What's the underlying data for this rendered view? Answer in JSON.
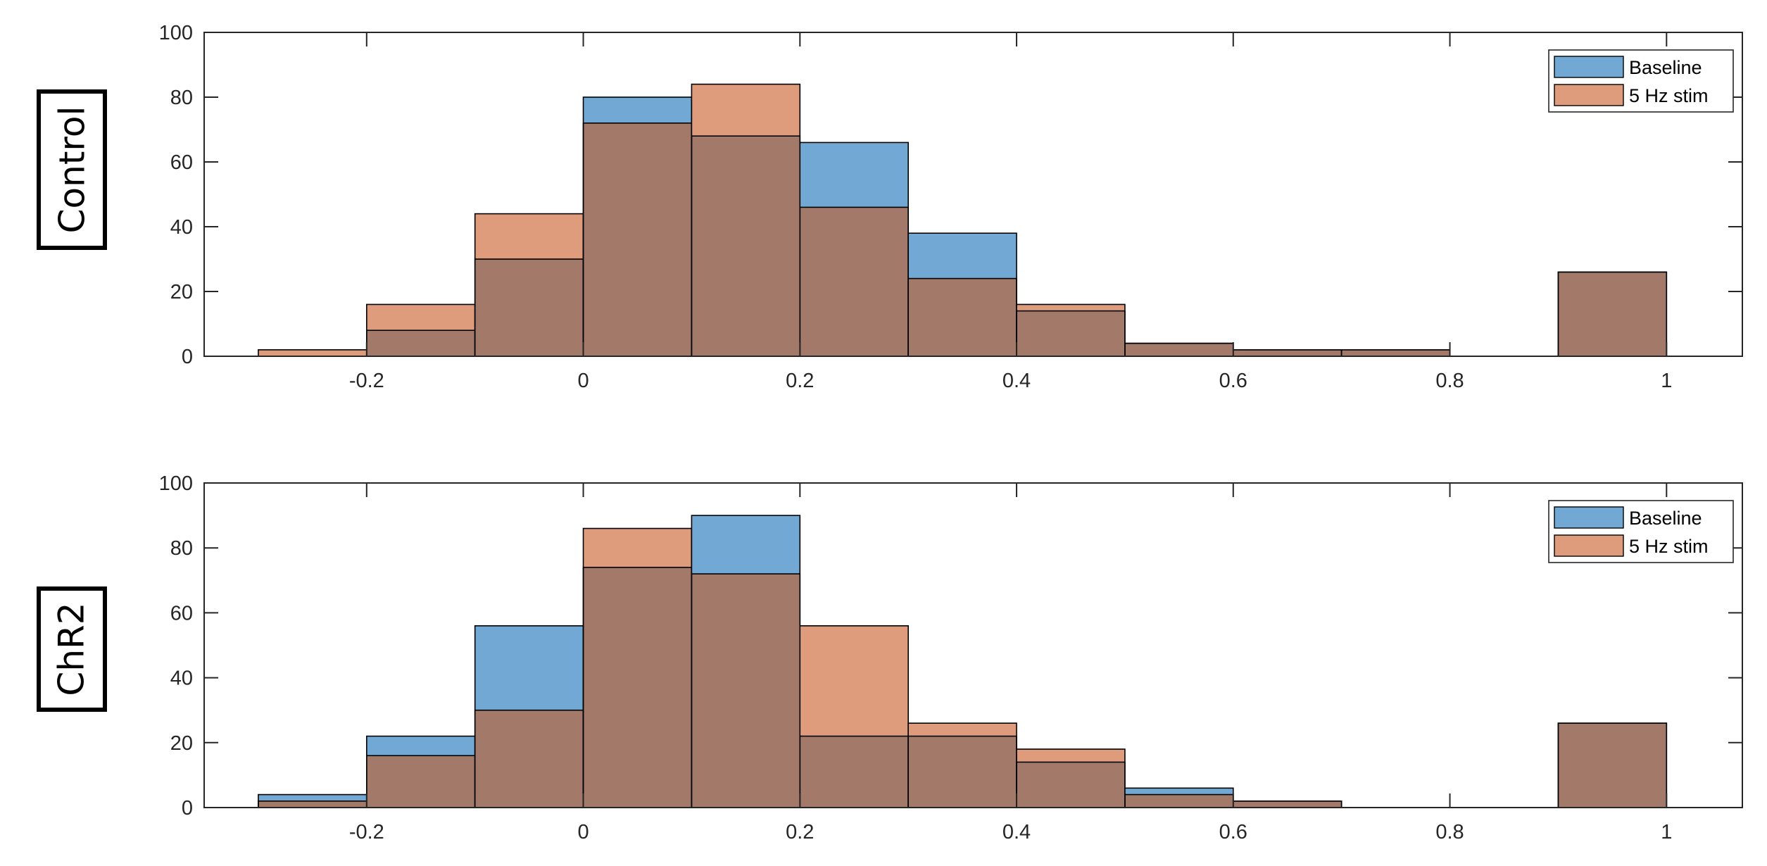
{
  "chart_data": [
    {
      "type": "bar",
      "title": "",
      "row_label": "Control",
      "xlabel": "",
      "ylabel": "",
      "bin_edges": [
        -0.3,
        -0.2,
        -0.1,
        0,
        0.1,
        0.2,
        0.3,
        0.4,
        0.5,
        0.6,
        0.7,
        0.8,
        0.9,
        1.0
      ],
      "series": [
        {
          "name": "Baseline",
          "color": "#72A9D4",
          "values": [
            0,
            8,
            30,
            80,
            68,
            66,
            38,
            14,
            4,
            2,
            2,
            0,
            26
          ]
        },
        {
          "name": "5 Hz stim",
          "color": "#DE9C7C",
          "values": [
            2,
            16,
            44,
            72,
            84,
            46,
            24,
            16,
            4,
            2,
            2,
            0,
            26
          ]
        }
      ],
      "overlap_color": "#A37A69",
      "xlim": [
        -0.35,
        1.07
      ],
      "ylim": [
        0,
        100
      ],
      "xticks": [
        -0.2,
        0,
        0.2,
        0.4,
        0.6,
        0.8,
        1
      ],
      "xtick_labels": [
        "-0.2",
        "0",
        "0.2",
        "0.4",
        "0.6",
        "0.8",
        "1"
      ],
      "yticks": [
        0,
        20,
        40,
        60,
        80,
        100
      ],
      "ytick_labels": [
        "0",
        "20",
        "40",
        "60",
        "80",
        "100"
      ],
      "legend": {
        "position": "top-right",
        "entries": [
          "Baseline",
          "5 Hz stim"
        ]
      }
    },
    {
      "type": "bar",
      "title": "",
      "row_label": "ChR2",
      "xlabel": "",
      "ylabel": "",
      "bin_edges": [
        -0.3,
        -0.2,
        -0.1,
        0,
        0.1,
        0.2,
        0.3,
        0.4,
        0.5,
        0.6,
        0.7,
        0.8,
        0.9,
        1.0
      ],
      "series": [
        {
          "name": "Baseline",
          "color": "#72A9D4",
          "values": [
            4,
            22,
            56,
            74,
            90,
            22,
            22,
            14,
            6,
            2,
            0,
            0,
            26
          ]
        },
        {
          "name": "5 Hz stim",
          "color": "#DE9C7C",
          "values": [
            2,
            16,
            30,
            86,
            72,
            56,
            26,
            18,
            4,
            2,
            0,
            0,
            26
          ]
        }
      ],
      "overlap_color": "#A37A69",
      "xlim": [
        -0.35,
        1.07
      ],
      "ylim": [
        0,
        100
      ],
      "xticks": [
        -0.2,
        0,
        0.2,
        0.4,
        0.6,
        0.8,
        1
      ],
      "xtick_labels": [
        "-0.2",
        "0",
        "0.2",
        "0.4",
        "0.6",
        "0.8",
        "1"
      ],
      "yticks": [
        0,
        20,
        40,
        60,
        80,
        100
      ],
      "ytick_labels": [
        "0",
        "20",
        "40",
        "60",
        "80",
        "100"
      ],
      "legend": {
        "position": "top-right",
        "entries": [
          "Baseline",
          "5 Hz stim"
        ]
      }
    }
  ]
}
